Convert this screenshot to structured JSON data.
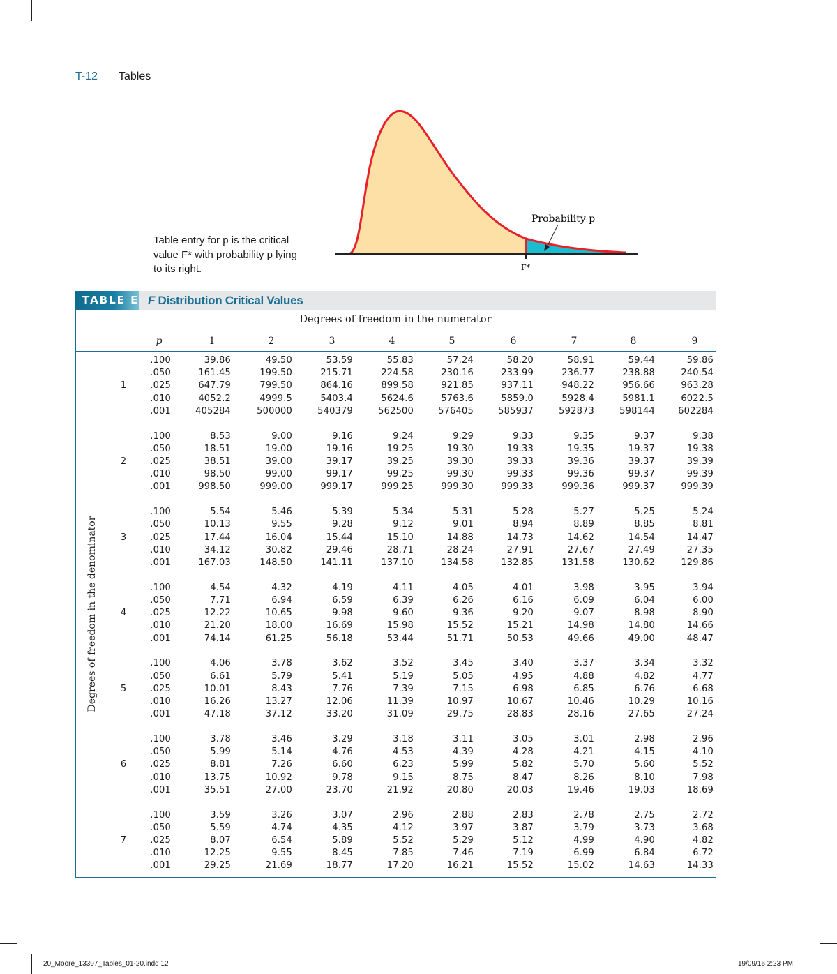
{
  "header": {
    "page_number": "T-12",
    "section": "Tables"
  },
  "figure": {
    "caption_lines": [
      "Table entry for p is the critical",
      "value F* with probability p lying",
      "to its right."
    ],
    "probability_label": "Probability p",
    "critical_label": "F*",
    "colors": {
      "body": "#fde0a6",
      "tail": "#1bbcd0",
      "curve": "#e8202a"
    }
  },
  "table": {
    "tag": "TABLE E",
    "title_italic": "F",
    "title": " Distribution Critical Values",
    "numerator_label": "Degrees of freedom in the numerator",
    "denominator_label": "Degrees of freedom in the denominator",
    "p_header": "p",
    "columns": [
      "1",
      "2",
      "3",
      "4",
      "5",
      "6",
      "7",
      "8",
      "9"
    ],
    "groups": [
      {
        "df": "1",
        "rows": [
          {
            "p": ".100",
            "values": [
              "39.86",
              "49.50",
              "53.59",
              "55.83",
              "57.24",
              "58.20",
              "58.91",
              "59.44",
              "59.86"
            ]
          },
          {
            "p": ".050",
            "values": [
              "161.45",
              "199.50",
              "215.71",
              "224.58",
              "230.16",
              "233.99",
              "236.77",
              "238.88",
              "240.54"
            ]
          },
          {
            "p": ".025",
            "values": [
              "647.79",
              "799.50",
              "864.16",
              "899.58",
              "921.85",
              "937.11",
              "948.22",
              "956.66",
              "963.28"
            ]
          },
          {
            "p": ".010",
            "values": [
              "4052.2",
              "4999.5",
              "5403.4",
              "5624.6",
              "5763.6",
              "5859.0",
              "5928.4",
              "5981.1",
              "6022.5"
            ]
          },
          {
            "p": ".001",
            "values": [
              "405284",
              "500000",
              "540379",
              "562500",
              "576405",
              "585937",
              "592873",
              "598144",
              "602284"
            ]
          }
        ]
      },
      {
        "df": "2",
        "rows": [
          {
            "p": ".100",
            "values": [
              "8.53",
              "9.00",
              "9.16",
              "9.24",
              "9.29",
              "9.33",
              "9.35",
              "9.37",
              "9.38"
            ]
          },
          {
            "p": ".050",
            "values": [
              "18.51",
              "19.00",
              "19.16",
              "19.25",
              "19.30",
              "19.33",
              "19.35",
              "19.37",
              "19.38"
            ]
          },
          {
            "p": ".025",
            "values": [
              "38.51",
              "39.00",
              "39.17",
              "39.25",
              "39.30",
              "39.33",
              "39.36",
              "39.37",
              "39.39"
            ]
          },
          {
            "p": ".010",
            "values": [
              "98.50",
              "99.00",
              "99.17",
              "99.25",
              "99.30",
              "99.33",
              "99.36",
              "99.37",
              "99.39"
            ]
          },
          {
            "p": ".001",
            "values": [
              "998.50",
              "999.00",
              "999.17",
              "999.25",
              "999.30",
              "999.33",
              "999.36",
              "999.37",
              "999.39"
            ]
          }
        ]
      },
      {
        "df": "3",
        "rows": [
          {
            "p": ".100",
            "values": [
              "5.54",
              "5.46",
              "5.39",
              "5.34",
              "5.31",
              "5.28",
              "5.27",
              "5.25",
              "5.24"
            ]
          },
          {
            "p": ".050",
            "values": [
              "10.13",
              "9.55",
              "9.28",
              "9.12",
              "9.01",
              "8.94",
              "8.89",
              "8.85",
              "8.81"
            ]
          },
          {
            "p": ".025",
            "values": [
              "17.44",
              "16.04",
              "15.44",
              "15.10",
              "14.88",
              "14.73",
              "14.62",
              "14.54",
              "14.47"
            ]
          },
          {
            "p": ".010",
            "values": [
              "34.12",
              "30.82",
              "29.46",
              "28.71",
              "28.24",
              "27.91",
              "27.67",
              "27.49",
              "27.35"
            ]
          },
          {
            "p": ".001",
            "values": [
              "167.03",
              "148.50",
              "141.11",
              "137.10",
              "134.58",
              "132.85",
              "131.58",
              "130.62",
              "129.86"
            ]
          }
        ]
      },
      {
        "df": "4",
        "rows": [
          {
            "p": ".100",
            "values": [
              "4.54",
              "4.32",
              "4.19",
              "4.11",
              "4.05",
              "4.01",
              "3.98",
              "3.95",
              "3.94"
            ]
          },
          {
            "p": ".050",
            "values": [
              "7.71",
              "6.94",
              "6.59",
              "6.39",
              "6.26",
              "6.16",
              "6.09",
              "6.04",
              "6.00"
            ]
          },
          {
            "p": ".025",
            "values": [
              "12.22",
              "10.65",
              "9.98",
              "9.60",
              "9.36",
              "9.20",
              "9.07",
              "8.98",
              "8.90"
            ]
          },
          {
            "p": ".010",
            "values": [
              "21.20",
              "18.00",
              "16.69",
              "15.98",
              "15.52",
              "15.21",
              "14.98",
              "14.80",
              "14.66"
            ]
          },
          {
            "p": ".001",
            "values": [
              "74.14",
              "61.25",
              "56.18",
              "53.44",
              "51.71",
              "50.53",
              "49.66",
              "49.00",
              "48.47"
            ]
          }
        ]
      },
      {
        "df": "5",
        "rows": [
          {
            "p": ".100",
            "values": [
              "4.06",
              "3.78",
              "3.62",
              "3.52",
              "3.45",
              "3.40",
              "3.37",
              "3.34",
              "3.32"
            ]
          },
          {
            "p": ".050",
            "values": [
              "6.61",
              "5.79",
              "5.41",
              "5.19",
              "5.05",
              "4.95",
              "4.88",
              "4.82",
              "4.77"
            ]
          },
          {
            "p": ".025",
            "values": [
              "10.01",
              "8.43",
              "7.76",
              "7.39",
              "7.15",
              "6.98",
              "6.85",
              "6.76",
              "6.68"
            ]
          },
          {
            "p": ".010",
            "values": [
              "16.26",
              "13.27",
              "12.06",
              "11.39",
              "10.97",
              "10.67",
              "10.46",
              "10.29",
              "10.16"
            ]
          },
          {
            "p": ".001",
            "values": [
              "47.18",
              "37.12",
              "33.20",
              "31.09",
              "29.75",
              "28.83",
              "28.16",
              "27.65",
              "27.24"
            ]
          }
        ]
      },
      {
        "df": "6",
        "rows": [
          {
            "p": ".100",
            "values": [
              "3.78",
              "3.46",
              "3.29",
              "3.18",
              "3.11",
              "3.05",
              "3.01",
              "2.98",
              "2.96"
            ]
          },
          {
            "p": ".050",
            "values": [
              "5.99",
              "5.14",
              "4.76",
              "4.53",
              "4.39",
              "4.28",
              "4.21",
              "4.15",
              "4.10"
            ]
          },
          {
            "p": ".025",
            "values": [
              "8.81",
              "7.26",
              "6.60",
              "6.23",
              "5.99",
              "5.82",
              "5.70",
              "5.60",
              "5.52"
            ]
          },
          {
            "p": ".010",
            "values": [
              "13.75",
              "10.92",
              "9.78",
              "9.15",
              "8.75",
              "8.47",
              "8.26",
              "8.10",
              "7.98"
            ]
          },
          {
            "p": ".001",
            "values": [
              "35.51",
              "27.00",
              "23.70",
              "21.92",
              "20.80",
              "20.03",
              "19.46",
              "19.03",
              "18.69"
            ]
          }
        ]
      },
      {
        "df": "7",
        "rows": [
          {
            "p": ".100",
            "values": [
              "3.59",
              "3.26",
              "3.07",
              "2.96",
              "2.88",
              "2.83",
              "2.78",
              "2.75",
              "2.72"
            ]
          },
          {
            "p": ".050",
            "values": [
              "5.59",
              "4.74",
              "4.35",
              "4.12",
              "3.97",
              "3.87",
              "3.79",
              "3.73",
              "3.68"
            ]
          },
          {
            "p": ".025",
            "values": [
              "8.07",
              "6.54",
              "5.89",
              "5.52",
              "5.29",
              "5.12",
              "4.99",
              "4.90",
              "4.82"
            ]
          },
          {
            "p": ".010",
            "values": [
              "12.25",
              "9.55",
              "8.45",
              "7.85",
              "7.46",
              "7.19",
              "6.99",
              "6.84",
              "6.72"
            ]
          },
          {
            "p": ".001",
            "values": [
              "29.25",
              "21.69",
              "18.77",
              "17.20",
              "16.21",
              "15.52",
              "15.02",
              "14.63",
              "14.33"
            ]
          }
        ]
      }
    ]
  },
  "footer": {
    "file": "20_Moore_13397_Tables_01-20.indd   12",
    "timestamp": "19/09/16   2:23 PM"
  }
}
